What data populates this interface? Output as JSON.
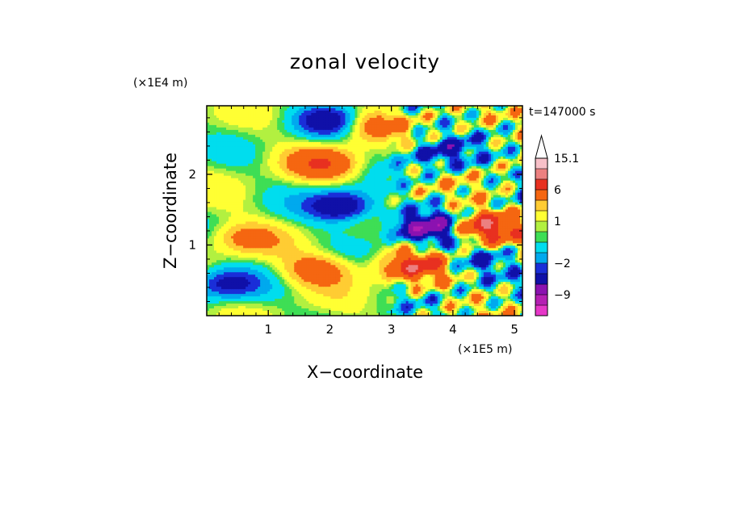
{
  "chart_data": {
    "type": "heatmap",
    "title": "zonal velocity",
    "xlabel": "X−coordinate",
    "ylabel": "Z−coordinate",
    "x_unit": "(×1E5 m)",
    "y_unit": "(×1E4 m)",
    "time_label": "t=147000 s",
    "xlim": [
      0,
      5.13
    ],
    "ylim": [
      0,
      2.97
    ],
    "x_ticks": [
      1,
      2,
      3,
      4,
      5
    ],
    "y_ticks": [
      1,
      2
    ],
    "colorbar": {
      "levels": [
        {
          "lo": -15,
          "hi": -12,
          "color": "#e637c8"
        },
        {
          "lo": -12,
          "hi": -9,
          "color": "#b51fb3"
        },
        {
          "lo": -9,
          "hi": -6,
          "color": "#8b12b0"
        },
        {
          "lo": -6,
          "hi": -3,
          "color": "#1010a8"
        },
        {
          "lo": -3,
          "hi": -2,
          "color": "#1a2ed8"
        },
        {
          "lo": -2,
          "hi": -1,
          "color": "#00a9ee"
        },
        {
          "lo": -1,
          "hi": 0,
          "color": "#00ddee"
        },
        {
          "lo": 0,
          "hi": 0.5,
          "color": "#3ede55"
        },
        {
          "lo": 0.5,
          "hi": 1,
          "color": "#b2f040"
        },
        {
          "lo": 1,
          "hi": 2,
          "color": "#ffff33"
        },
        {
          "lo": 2,
          "hi": 3,
          "color": "#ffcc33"
        },
        {
          "lo": 3,
          "hi": 6,
          "color": "#f56611"
        },
        {
          "lo": 6,
          "hi": 9,
          "color": "#e83020"
        },
        {
          "lo": 9,
          "hi": 12,
          "color": "#ec8080"
        },
        {
          "lo": 12,
          "hi": 15.1,
          "color": "#f7c0c8"
        }
      ],
      "tick_labels": [
        "15.1",
        "6",
        "1",
        "−2",
        "−9"
      ],
      "tick_values": [
        15.1,
        6,
        1,
        -2,
        -9
      ],
      "over_arrow_color": "#ffffff"
    },
    "field_features": [
      {
        "x": 1.9,
        "z": 2.15,
        "u": 5
      },
      {
        "x": 0.6,
        "z": 1.1,
        "u": 3
      },
      {
        "x": 1.8,
        "z": 0.65,
        "u": 4
      },
      {
        "x": 3.6,
        "z": 1.25,
        "u": -8
      },
      {
        "x": 4.5,
        "z": 1.25,
        "u": 8
      },
      {
        "x": 2.2,
        "z": 1.55,
        "u": -6
      },
      {
        "x": 3.4,
        "z": 0.7,
        "u": 6
      },
      {
        "x": 0.3,
        "z": 0.45,
        "u": -4
      },
      {
        "x": 2.05,
        "z": 2.75,
        "u": -5
      },
      {
        "x": 4.4,
        "z": 0.8,
        "u": -3
      },
      {
        "x": 3.8,
        "z": 2.3,
        "u": -4
      },
      {
        "x": 2.6,
        "z": 2.7,
        "u": 4
      }
    ]
  }
}
